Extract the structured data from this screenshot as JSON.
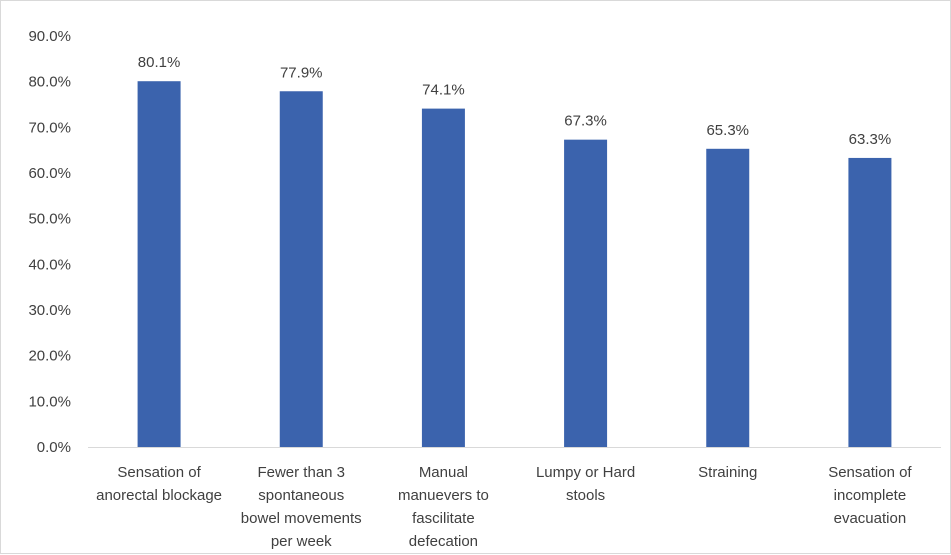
{
  "chart_data": {
    "type": "bar",
    "categories": [
      [
        "Sensation of",
        "anorectal blockage"
      ],
      [
        "Fewer than 3",
        "spontaneous",
        "bowel movements",
        "per week"
      ],
      [
        "Manual",
        "manuevers to",
        "fascilitate",
        "defecation"
      ],
      [
        "Lumpy or Hard",
        "stools"
      ],
      [
        "Straining"
      ],
      [
        "Sensation of",
        "incomplete",
        "evacuation"
      ]
    ],
    "values": [
      80.1,
      77.9,
      74.1,
      67.3,
      65.3,
      63.3
    ],
    "data_labels": [
      "80.1%",
      "77.9%",
      "74.1%",
      "67.3%",
      "65.3%",
      "63.3%"
    ],
    "y_ticks": [
      "0.0%",
      "10.0%",
      "20.0%",
      "30.0%",
      "40.0%",
      "50.0%",
      "60.0%",
      "70.0%",
      "80.0%",
      "90.0%"
    ],
    "ylim": [
      0,
      90
    ],
    "grid": false,
    "bar_color": "#3b63ad",
    "axis_color": "#d9d9d9",
    "title": "",
    "xlabel": "",
    "ylabel": ""
  }
}
